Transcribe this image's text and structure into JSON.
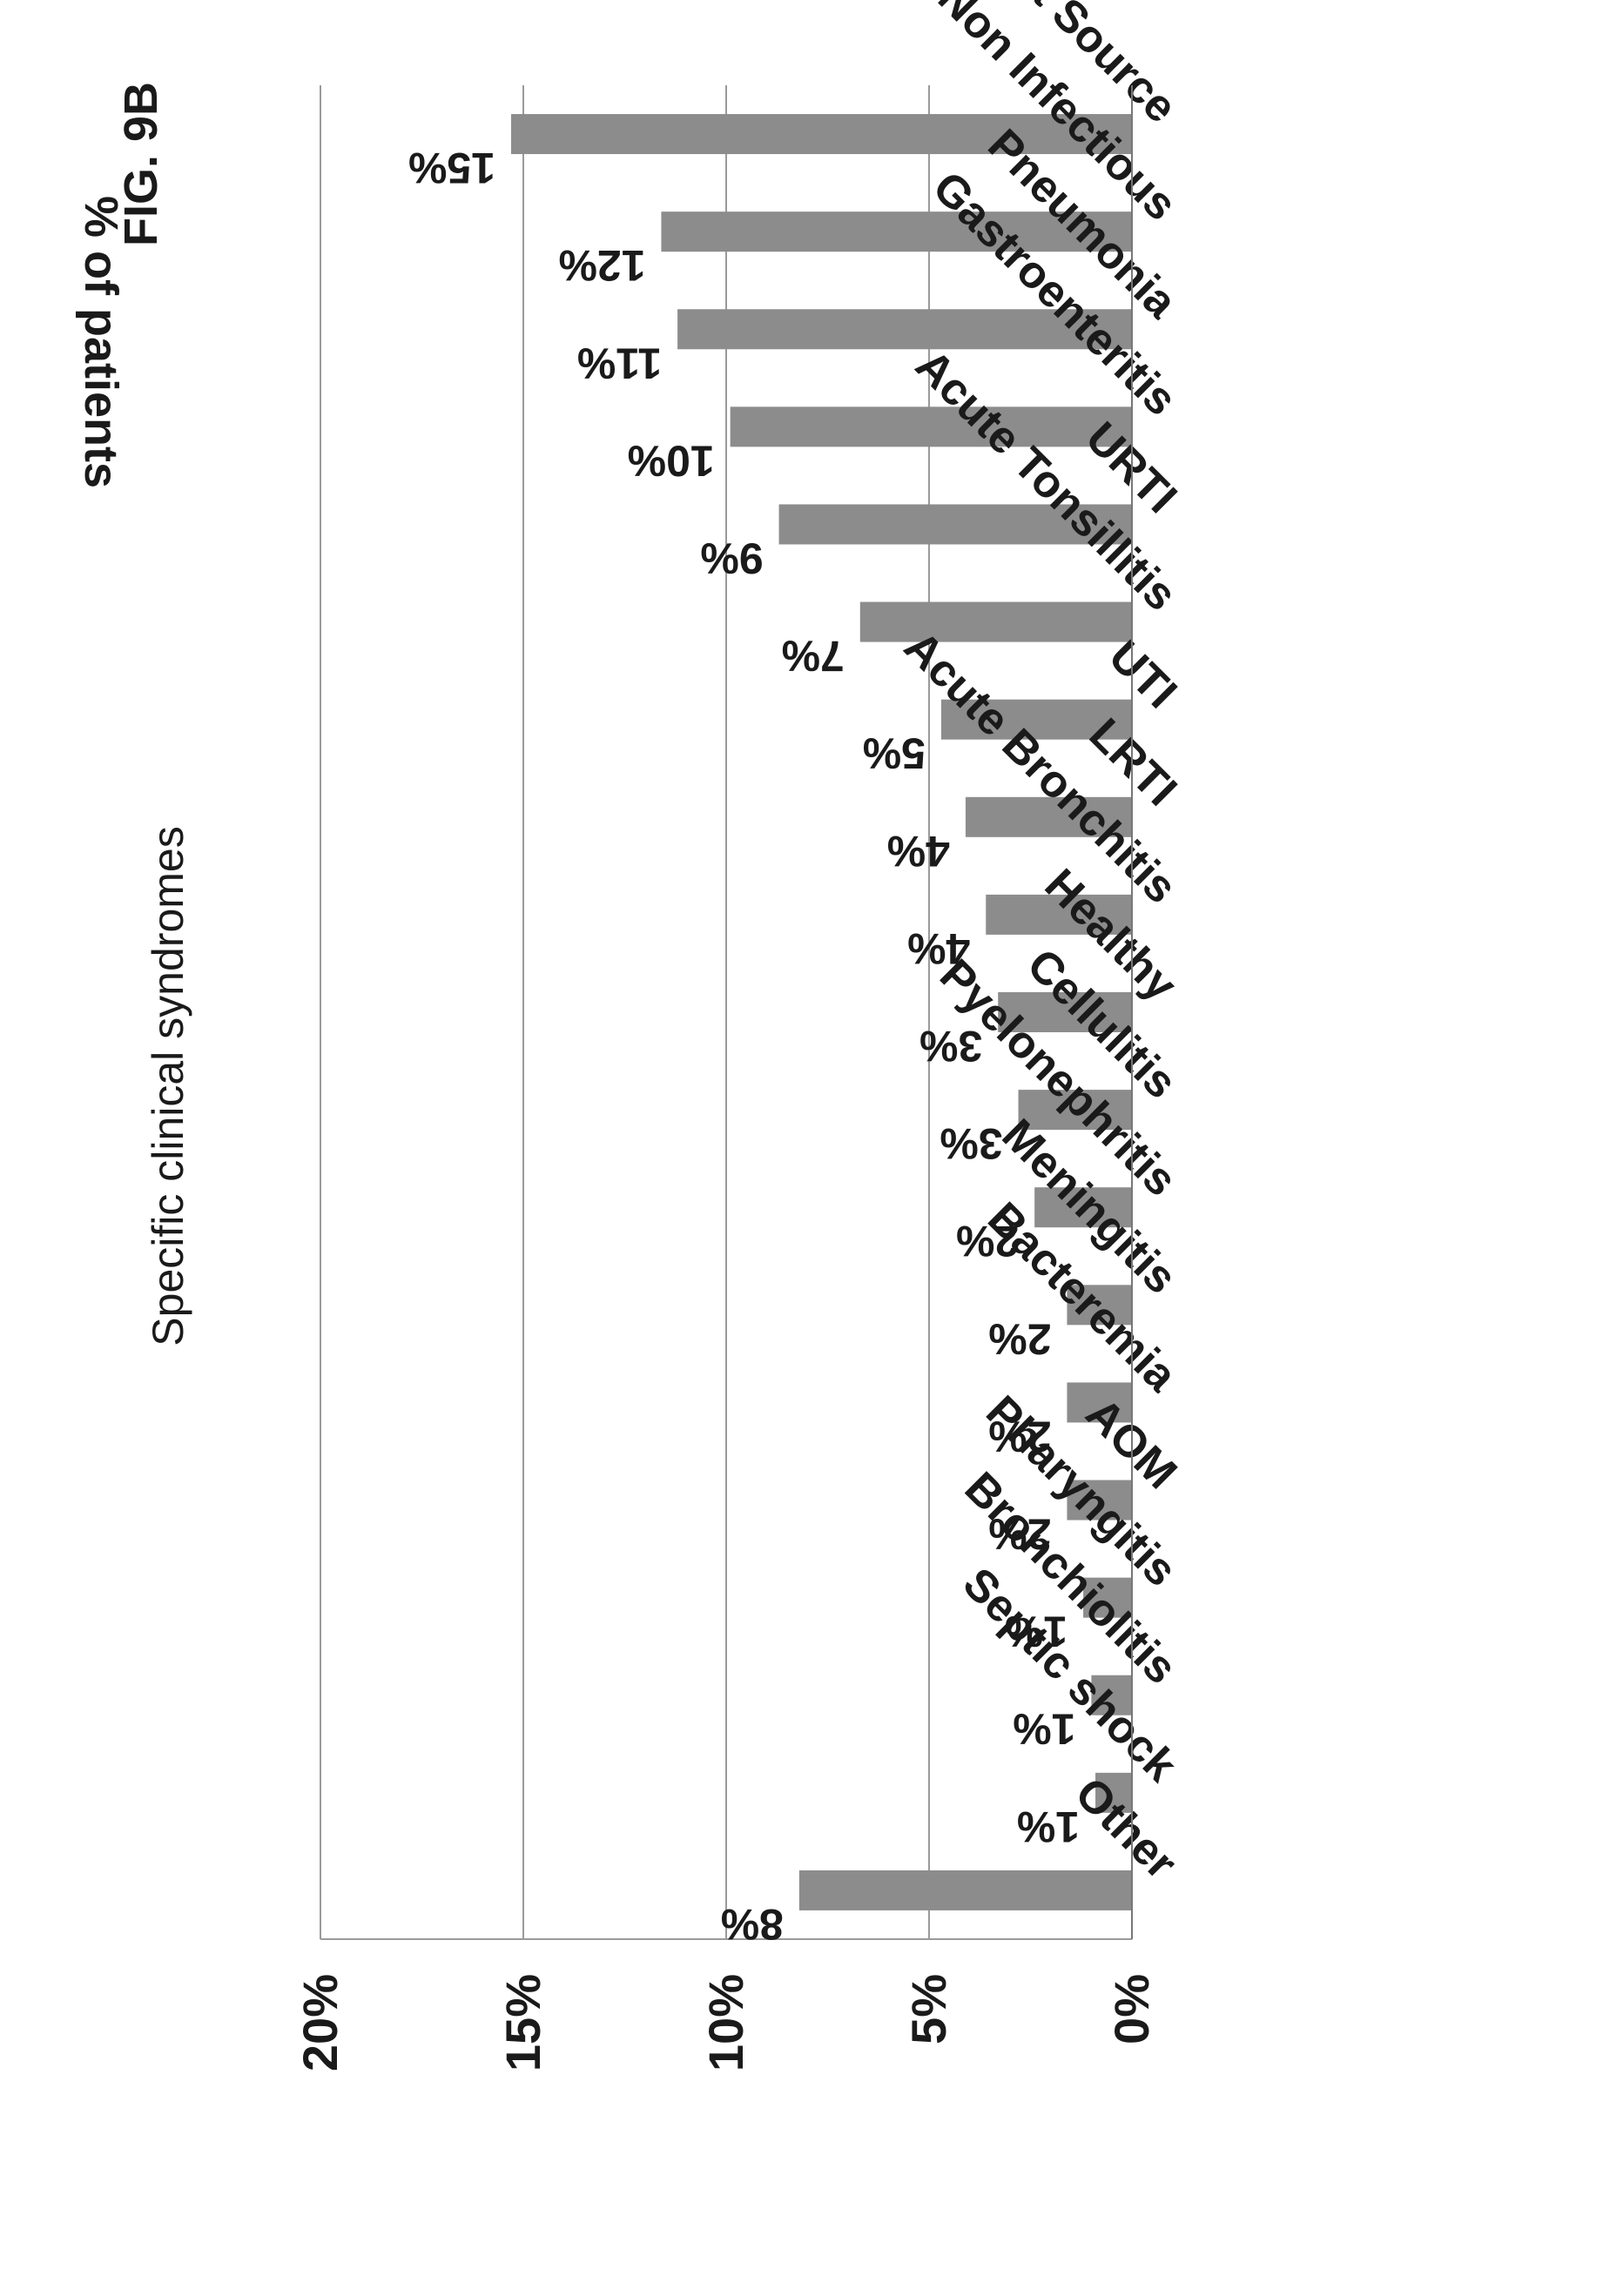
{
  "figure_label": "FIG. 9B",
  "chart_data": {
    "type": "bar",
    "title": "Specific clinical syndromes",
    "ylabel": "% of patients",
    "xlabel": "",
    "ylim": [
      0,
      20
    ],
    "yticks": [
      0,
      5,
      10,
      15,
      20
    ],
    "ytick_labels": [
      "0%",
      "5%",
      "10%",
      "15%",
      "20%"
    ],
    "grid": true,
    "legend": "none",
    "bar_color": "#8c8c8c",
    "categories": [
      "Other",
      "Septic shock",
      "Bronchiolitis",
      "Pharyngitis",
      "AOM",
      "Bacteremia",
      "Meningitis",
      "Pyelonephritis",
      "Cellulitis",
      "Healthy",
      "Acute Bronchitis",
      "LRTI",
      "UTI",
      "Acute Tonsillitis",
      "URTI",
      "Gastroenteritis",
      "Pneumonia",
      "Non Infectious",
      "Fever Without Source"
    ],
    "values": [
      8.2,
      0.9,
      1.0,
      1.2,
      1.6,
      1.6,
      1.6,
      2.4,
      2.8,
      3.3,
      3.6,
      4.1,
      4.7,
      6.7,
      8.7,
      9.9,
      11.2,
      11.6,
      15.3
    ],
    "data_labels": [
      "8%",
      "1%",
      "1%",
      "1%",
      "2%",
      "2%",
      "2%",
      "2%",
      "3%",
      "3%",
      "4%",
      "4%",
      "5%",
      "7%",
      "9%",
      "10%",
      "11%",
      "12%",
      "15%"
    ]
  }
}
